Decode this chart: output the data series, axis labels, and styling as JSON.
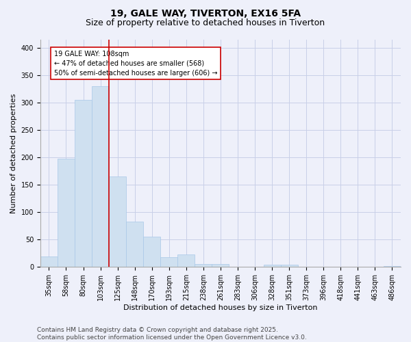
{
  "title1": "19, GALE WAY, TIVERTON, EX16 5FA",
  "title2": "Size of property relative to detached houses in Tiverton",
  "xlabel": "Distribution of detached houses by size in Tiverton",
  "ylabel": "Number of detached properties",
  "footer1": "Contains HM Land Registry data © Crown copyright and database right 2025.",
  "footer2": "Contains public sector information licensed under the Open Government Licence v3.0.",
  "categories": [
    "35sqm",
    "58sqm",
    "80sqm",
    "103sqm",
    "125sqm",
    "148sqm",
    "170sqm",
    "193sqm",
    "215sqm",
    "238sqm",
    "261sqm",
    "283sqm",
    "306sqm",
    "328sqm",
    "351sqm",
    "373sqm",
    "396sqm",
    "418sqm",
    "441sqm",
    "463sqm",
    "486sqm"
  ],
  "values": [
    19,
    198,
    305,
    330,
    165,
    83,
    55,
    18,
    23,
    6,
    6,
    0,
    0,
    4,
    4,
    0,
    0,
    0,
    0,
    0,
    2
  ],
  "bar_color": "#cfe0f0",
  "bar_edge_color": "#a8c8e8",
  "vline_x": 3.5,
  "vline_color": "#cc0000",
  "annotation_line1": "19 GALE WAY: 108sqm",
  "annotation_line2": "← 47% of detached houses are smaller (568)",
  "annotation_line3": "50% of semi-detached houses are larger (606) →",
  "annotation_box_color": "#ffffff",
  "annotation_box_edge": "#cc0000",
  "ylim": [
    0,
    415
  ],
  "yticks": [
    0,
    50,
    100,
    150,
    200,
    250,
    300,
    350,
    400
  ],
  "grid_color": "#c8cfe8",
  "background_color": "#eef0fa",
  "title_fontsize": 10,
  "subtitle_fontsize": 9,
  "axis_label_fontsize": 8,
  "tick_fontsize": 7,
  "annotation_fontsize": 7,
  "footer_fontsize": 6.5
}
